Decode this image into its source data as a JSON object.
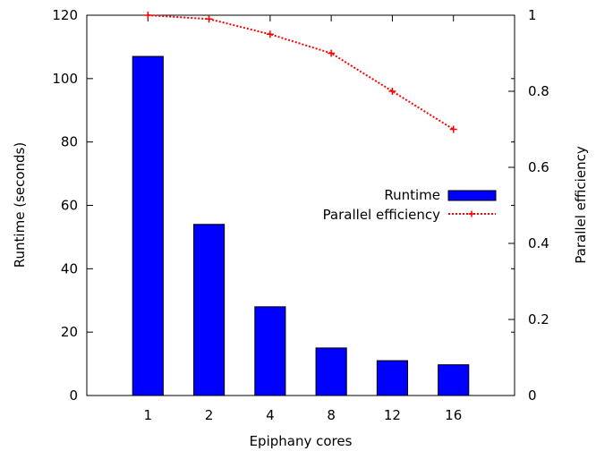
{
  "chart_data": {
    "type": "bar",
    "title": "",
    "xlabel": "Epiphany cores",
    "ylabel": "Runtime (seconds)",
    "y2label": "Parallel efficiency",
    "categories": [
      "1",
      "2",
      "4",
      "8",
      "12",
      "16"
    ],
    "ylim": [
      0,
      120
    ],
    "yticks": [
      "0",
      "20",
      "40",
      "60",
      "80",
      "100",
      "120"
    ],
    "y2lim": [
      0,
      1
    ],
    "y2ticks": [
      "0",
      "0.2",
      "0.4",
      "0.6",
      "0.8",
      "1"
    ],
    "grid": false,
    "legend_position": "right",
    "series": [
      {
        "name": "Runtime",
        "kind": "bar",
        "axis": "left",
        "color": "#0000ff",
        "values": [
          107,
          54,
          28,
          15,
          11,
          9.7
        ]
      },
      {
        "name": "Parallel efficiency",
        "kind": "line",
        "axis": "right",
        "color": "#ff0000",
        "line_style": "dotted",
        "marker": "plus",
        "values": [
          1.0,
          0.99,
          0.95,
          0.9,
          0.8,
          0.7
        ]
      }
    ]
  }
}
